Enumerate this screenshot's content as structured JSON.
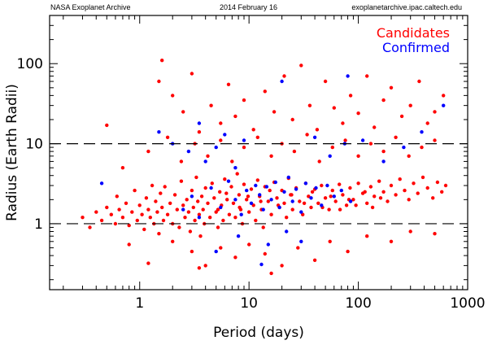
{
  "header": {
    "left": "NASA Exoplanet Archive",
    "center": "2014 February 16",
    "right": "exoplanetarchive.ipac.caltech.edu"
  },
  "chart_data": {
    "type": "scatter",
    "xlabel": "Period (days)",
    "ylabel": "Radius (Earth Radii)",
    "xscale": "log",
    "yscale": "log",
    "xlim": [
      0.15,
      1000
    ],
    "ylim": [
      0.15,
      400
    ],
    "x_ticks": [
      1,
      10,
      100,
      1000
    ],
    "x_tick_labels": [
      "1",
      "10",
      "100",
      "1000"
    ],
    "y_ticks": [
      1,
      10,
      100
    ],
    "y_tick_labels": [
      "1",
      "10",
      "100"
    ],
    "reference_lines": [
      1,
      10
    ],
    "legend_placement": "top-right",
    "grid": false,
    "series": [
      {
        "name": "Candidates",
        "color": "#ff0000",
        "points": [
          [
            0.3,
            1.2
          ],
          [
            0.35,
            0.9
          ],
          [
            0.4,
            1.4
          ],
          [
            0.45,
            1.1
          ],
          [
            0.5,
            1.6
          ],
          [
            0.55,
            1.3
          ],
          [
            0.6,
            1.0
          ],
          [
            0.62,
            2.2
          ],
          [
            0.65,
            1.5
          ],
          [
            0.7,
            1.2
          ],
          [
            0.75,
            1.8
          ],
          [
            0.8,
            0.95
          ],
          [
            0.85,
            1.4
          ],
          [
            0.9,
            2.6
          ],
          [
            0.95,
            1.1
          ],
          [
            1.0,
            1.7
          ],
          [
            1.05,
            1.3
          ],
          [
            1.1,
            0.85
          ],
          [
            1.15,
            2.1
          ],
          [
            1.2,
            1.5
          ],
          [
            1.25,
            1.2
          ],
          [
            1.3,
            3.0
          ],
          [
            1.35,
            1.0
          ],
          [
            1.4,
            1.9
          ],
          [
            1.45,
            1.4
          ],
          [
            1.5,
            0.75
          ],
          [
            1.55,
            2.4
          ],
          [
            1.6,
            1.6
          ],
          [
            1.65,
            1.1
          ],
          [
            1.7,
            2.9
          ],
          [
            1.8,
            1.3
          ],
          [
            1.9,
            1.8
          ],
          [
            2.0,
            1.0
          ],
          [
            2.1,
            2.3
          ],
          [
            2.2,
            1.5
          ],
          [
            2.3,
            0.9
          ],
          [
            2.4,
            3.4
          ],
          [
            2.5,
            1.7
          ],
          [
            2.6,
            1.2
          ],
          [
            2.7,
            2.0
          ],
          [
            2.8,
            1.4
          ],
          [
            2.9,
            0.8
          ],
          [
            3.0,
            2.6
          ],
          [
            3.1,
            1.6
          ],
          [
            3.2,
            1.1
          ],
          [
            3.3,
            3.8
          ],
          [
            3.4,
            1.9
          ],
          [
            3.5,
            1.3
          ],
          [
            3.6,
            0.7
          ],
          [
            3.7,
            2.2
          ],
          [
            3.8,
            1.5
          ],
          [
            3.9,
            1.0
          ],
          [
            4.0,
            2.8
          ],
          [
            4.2,
            1.8
          ],
          [
            4.4,
            1.2
          ],
          [
            4.6,
            3.2
          ],
          [
            4.8,
            2.1
          ],
          [
            5.0,
            1.4
          ],
          [
            5.2,
            0.9
          ],
          [
            5.4,
            2.5
          ],
          [
            5.6,
            1.7
          ],
          [
            5.8,
            1.1
          ],
          [
            6.0,
            3.6
          ],
          [
            6.3,
            2.0
          ],
          [
            6.6,
            1.3
          ],
          [
            6.9,
            2.9
          ],
          [
            7.2,
            1.8
          ],
          [
            7.5,
            1.2
          ],
          [
            7.8,
            4.2
          ],
          [
            8.1,
            2.3
          ],
          [
            8.4,
            1.5
          ],
          [
            8.7,
            1.0
          ],
          [
            9.0,
            3.1
          ],
          [
            9.5,
            2.0
          ],
          [
            10,
            1.4
          ],
          [
            10.5,
            2.7
          ],
          [
            11,
            1.7
          ],
          [
            11.5,
            1.1
          ],
          [
            12,
            3.5
          ],
          [
            12.5,
            2.2
          ],
          [
            13,
            1.5
          ],
          [
            13.5,
            0.9
          ],
          [
            14,
            2.9
          ],
          [
            15,
            1.9
          ],
          [
            16,
            1.3
          ],
          [
            17,
            3.3
          ],
          [
            18,
            2.1
          ],
          [
            19,
            1.6
          ],
          [
            20,
            2.6
          ],
          [
            21,
            1.8
          ],
          [
            22,
            1.2
          ],
          [
            23,
            3.7
          ],
          [
            24,
            2.3
          ],
          [
            25,
            1.5
          ],
          [
            27,
            2.8
          ],
          [
            29,
            1.9
          ],
          [
            31,
            1.3
          ],
          [
            33,
            3.2
          ],
          [
            35,
            2.2
          ],
          [
            37,
            1.6
          ],
          [
            40,
            2.7
          ],
          [
            43,
            1.8
          ],
          [
            46,
            3.0
          ],
          [
            50,
            2.1
          ],
          [
            54,
            1.5
          ],
          [
            58,
            2.6
          ],
          [
            62,
            1.9
          ],
          [
            67,
            3.1
          ],
          [
            72,
            2.3
          ],
          [
            78,
            1.7
          ],
          [
            84,
            2.8
          ],
          [
            90,
            2.0
          ],
          [
            100,
            3.2
          ],
          [
            110,
            2.4
          ],
          [
            120,
            1.8
          ],
          [
            130,
            2.9
          ],
          [
            140,
            2.2
          ],
          [
            155,
            3.4
          ],
          [
            170,
            2.5
          ],
          [
            185,
            1.9
          ],
          [
            200,
            3.0
          ],
          [
            220,
            2.3
          ],
          [
            240,
            3.6
          ],
          [
            265,
            2.6
          ],
          [
            290,
            2.0
          ],
          [
            320,
            3.2
          ],
          [
            350,
            2.4
          ],
          [
            390,
            3.8
          ],
          [
            430,
            2.8
          ],
          [
            480,
            2.1
          ],
          [
            530,
            3.3
          ],
          [
            580,
            2.5
          ],
          [
            630,
            3.0
          ],
          [
            1.6,
            110
          ],
          [
            1.5,
            60
          ],
          [
            2.0,
            40
          ],
          [
            2.5,
            25
          ],
          [
            3.0,
            75
          ],
          [
            3.5,
            14
          ],
          [
            4.5,
            30
          ],
          [
            5.5,
            18
          ],
          [
            6.5,
            55
          ],
          [
            7.5,
            22
          ],
          [
            9.0,
            35
          ],
          [
            11,
            15
          ],
          [
            14,
            45
          ],
          [
            17,
            25
          ],
          [
            21,
            70
          ],
          [
            25,
            20
          ],
          [
            30,
            95
          ],
          [
            36,
            30
          ],
          [
            42,
            15
          ],
          [
            50,
            60
          ],
          [
            60,
            28
          ],
          [
            72,
            18
          ],
          [
            85,
            40
          ],
          [
            100,
            24
          ],
          [
            120,
            70
          ],
          [
            140,
            16
          ],
          [
            170,
            35
          ],
          [
            200,
            50
          ],
          [
            250,
            22
          ],
          [
            300,
            30
          ],
          [
            360,
            60
          ],
          [
            430,
            18
          ],
          [
            500,
            25
          ],
          [
            600,
            40
          ],
          [
            0.5,
            17
          ],
          [
            0.7,
            5
          ],
          [
            1.2,
            8
          ],
          [
            1.8,
            12
          ],
          [
            2.4,
            6
          ],
          [
            3.2,
            10
          ],
          [
            4.2,
            7
          ],
          [
            5.5,
            11
          ],
          [
            7,
            6
          ],
          [
            9,
            9
          ],
          [
            12,
            12
          ],
          [
            16,
            7
          ],
          [
            20,
            10
          ],
          [
            26,
            8
          ],
          [
            34,
            13
          ],
          [
            44,
            6
          ],
          [
            58,
            9
          ],
          [
            76,
            11
          ],
          [
            100,
            7
          ],
          [
            130,
            10
          ],
          [
            170,
            8
          ],
          [
            220,
            12
          ],
          [
            290,
            7
          ],
          [
            380,
            9
          ],
          [
            500,
            11
          ],
          [
            0.8,
            0.55
          ],
          [
            1.2,
            0.32
          ],
          [
            2.0,
            0.6
          ],
          [
            3.0,
            0.45
          ],
          [
            4.0,
            0.3
          ],
          [
            5.5,
            0.5
          ],
          [
            7.5,
            0.38
          ],
          [
            10,
            0.55
          ],
          [
            14,
            0.42
          ],
          [
            20,
            0.3
          ],
          [
            28,
            0.5
          ],
          [
            40,
            0.35
          ],
          [
            55,
            0.6
          ],
          [
            80,
            0.45
          ],
          [
            120,
            0.7
          ],
          [
            200,
            0.6
          ],
          [
            300,
            0.8
          ],
          [
            500,
            0.75
          ],
          [
            3.5,
            0.28
          ],
          [
            16,
            0.24
          ],
          [
            5.2,
            1.5
          ],
          [
            6.2,
            2.4
          ],
          [
            8.2,
            1.6
          ],
          [
            9.8,
            2.2
          ],
          [
            12.8,
            1.9
          ],
          [
            15.5,
            2.6
          ],
          [
            18.5,
            1.7
          ],
          [
            24.5,
            2.3
          ],
          [
            32,
            1.8
          ],
          [
            38,
            2.5
          ],
          [
            47,
            1.6
          ],
          [
            56,
            2.2
          ],
          [
            68,
            1.5
          ],
          [
            82,
            2.0
          ],
          [
            95,
            1.7
          ],
          [
            115,
            2.5
          ],
          [
            135,
            1.6
          ],
          [
            160,
            2.1
          ]
        ]
      },
      {
        "name": "Confirmed",
        "color": "#0000ff",
        "points": [
          [
            0.45,
            3.2
          ],
          [
            1.5,
            14
          ],
          [
            2.0,
            10
          ],
          [
            2.8,
            8
          ],
          [
            3.5,
            18
          ],
          [
            4.0,
            6
          ],
          [
            5.0,
            9
          ],
          [
            6.0,
            13
          ],
          [
            7.5,
            5
          ],
          [
            9.0,
            11
          ],
          [
            2.5,
            1.5
          ],
          [
            3.0,
            2.2
          ],
          [
            3.5,
            1.2
          ],
          [
            4.5,
            2.8
          ],
          [
            5.5,
            1.6
          ],
          [
            6.5,
            3.4
          ],
          [
            7.5,
            2.0
          ],
          [
            8.5,
            1.3
          ],
          [
            9.5,
            2.6
          ],
          [
            10.5,
            1.8
          ],
          [
            11.5,
            3.0
          ],
          [
            12.5,
            2.3
          ],
          [
            13.5,
            1.5
          ],
          [
            14.5,
            2.9
          ],
          [
            16,
            2.0
          ],
          [
            17.5,
            3.3
          ],
          [
            19,
            1.6
          ],
          [
            21,
            2.5
          ],
          [
            23,
            3.8
          ],
          [
            25,
            1.9
          ],
          [
            27,
            2.7
          ],
          [
            30,
            1.4
          ],
          [
            33,
            3.2
          ],
          [
            37,
            2.1
          ],
          [
            41,
            2.8
          ],
          [
            46,
            1.7
          ],
          [
            52,
            3.0
          ],
          [
            60,
            2.2
          ],
          [
            70,
            2.6
          ],
          [
            85,
            1.9
          ],
          [
            13,
            0.31
          ],
          [
            5.0,
            0.45
          ],
          [
            8.0,
            0.7
          ],
          [
            15,
            0.55
          ],
          [
            22,
            0.8
          ],
          [
            30,
            0.6
          ],
          [
            40,
            12
          ],
          [
            55,
            7
          ],
          [
            75,
            10
          ],
          [
            110,
            11
          ],
          [
            170,
            6
          ],
          [
            260,
            9
          ],
          [
            380,
            14
          ],
          [
            600,
            30
          ],
          [
            80,
            70
          ],
          [
            20,
            60
          ]
        ]
      }
    ]
  }
}
